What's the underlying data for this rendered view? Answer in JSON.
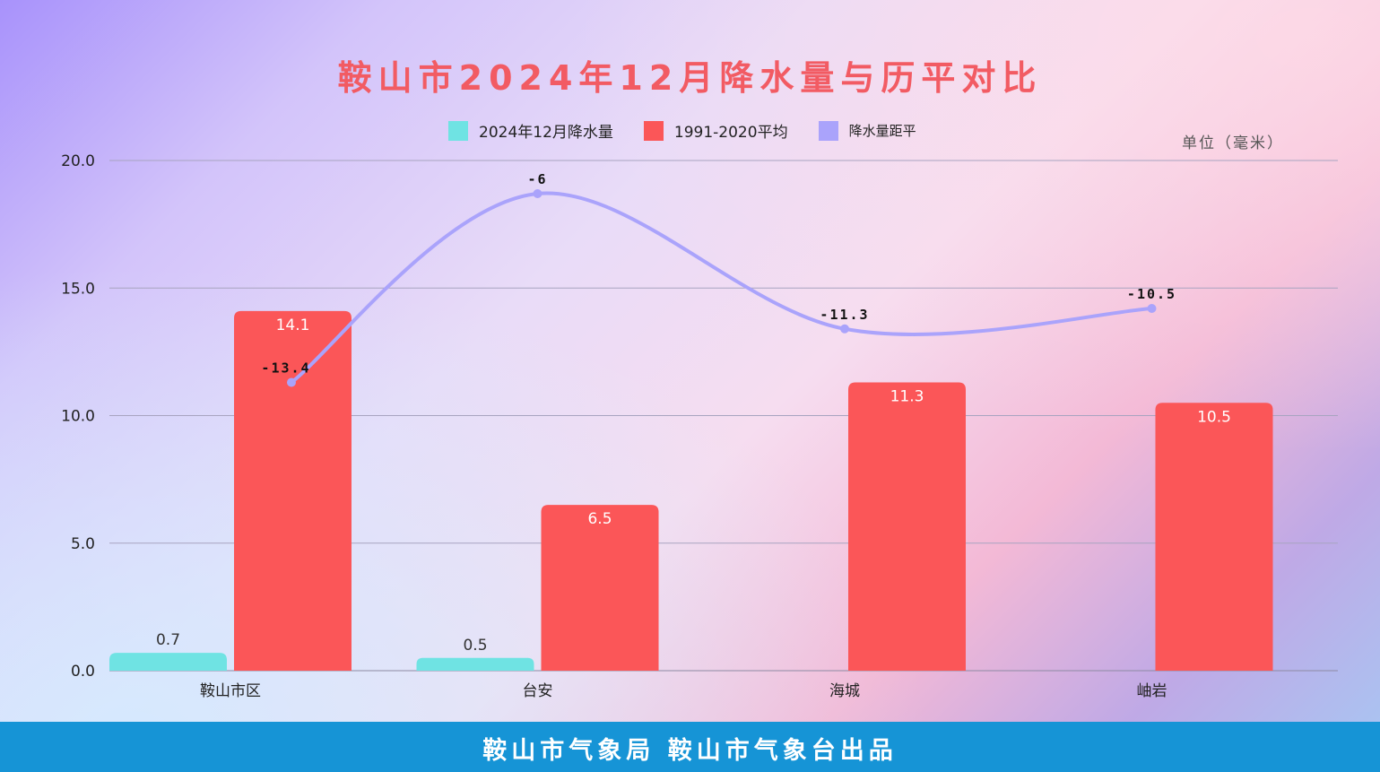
{
  "title": "鞍山市2024年12月降水量与历平对比",
  "unit": "单位（毫米）",
  "footer": "鞍山市气象局 鞍山市气象台出品",
  "colors": {
    "series_2024": "#6fe3e3",
    "series_avg": "#fb5658",
    "series_anomaly": "#aaa3fb",
    "title": "#f25b63",
    "footer_bg": "#1694d6"
  },
  "chart_data": {
    "type": "bar",
    "categories": [
      "鞍山市区",
      "台安",
      "海城",
      "岫岩"
    ],
    "series": [
      {
        "name": "2024年12月降水量",
        "type": "bar",
        "values": [
          0.7,
          0.5,
          null,
          null
        ],
        "labels": [
          "0.7",
          "0.5",
          "",
          ""
        ]
      },
      {
        "name": "1991-2020平均",
        "type": "bar",
        "values": [
          14.1,
          6.5,
          11.3,
          10.5
        ],
        "labels": [
          "14.1",
          "6.5",
          "11.3",
          "10.5"
        ]
      },
      {
        "name": "降水量距平",
        "type": "line",
        "values": [
          -13.4,
          -6,
          -11.3,
          -10.5
        ],
        "labels": [
          "-13.4",
          "-6",
          "-11.3",
          "-10.5"
        ]
      }
    ],
    "yticks": [
      "0.0",
      "5.0",
      "10.0",
      "15.0",
      "20.0"
    ],
    "ylim": [
      0,
      20
    ],
    "grid": true,
    "legend": "top-center"
  }
}
